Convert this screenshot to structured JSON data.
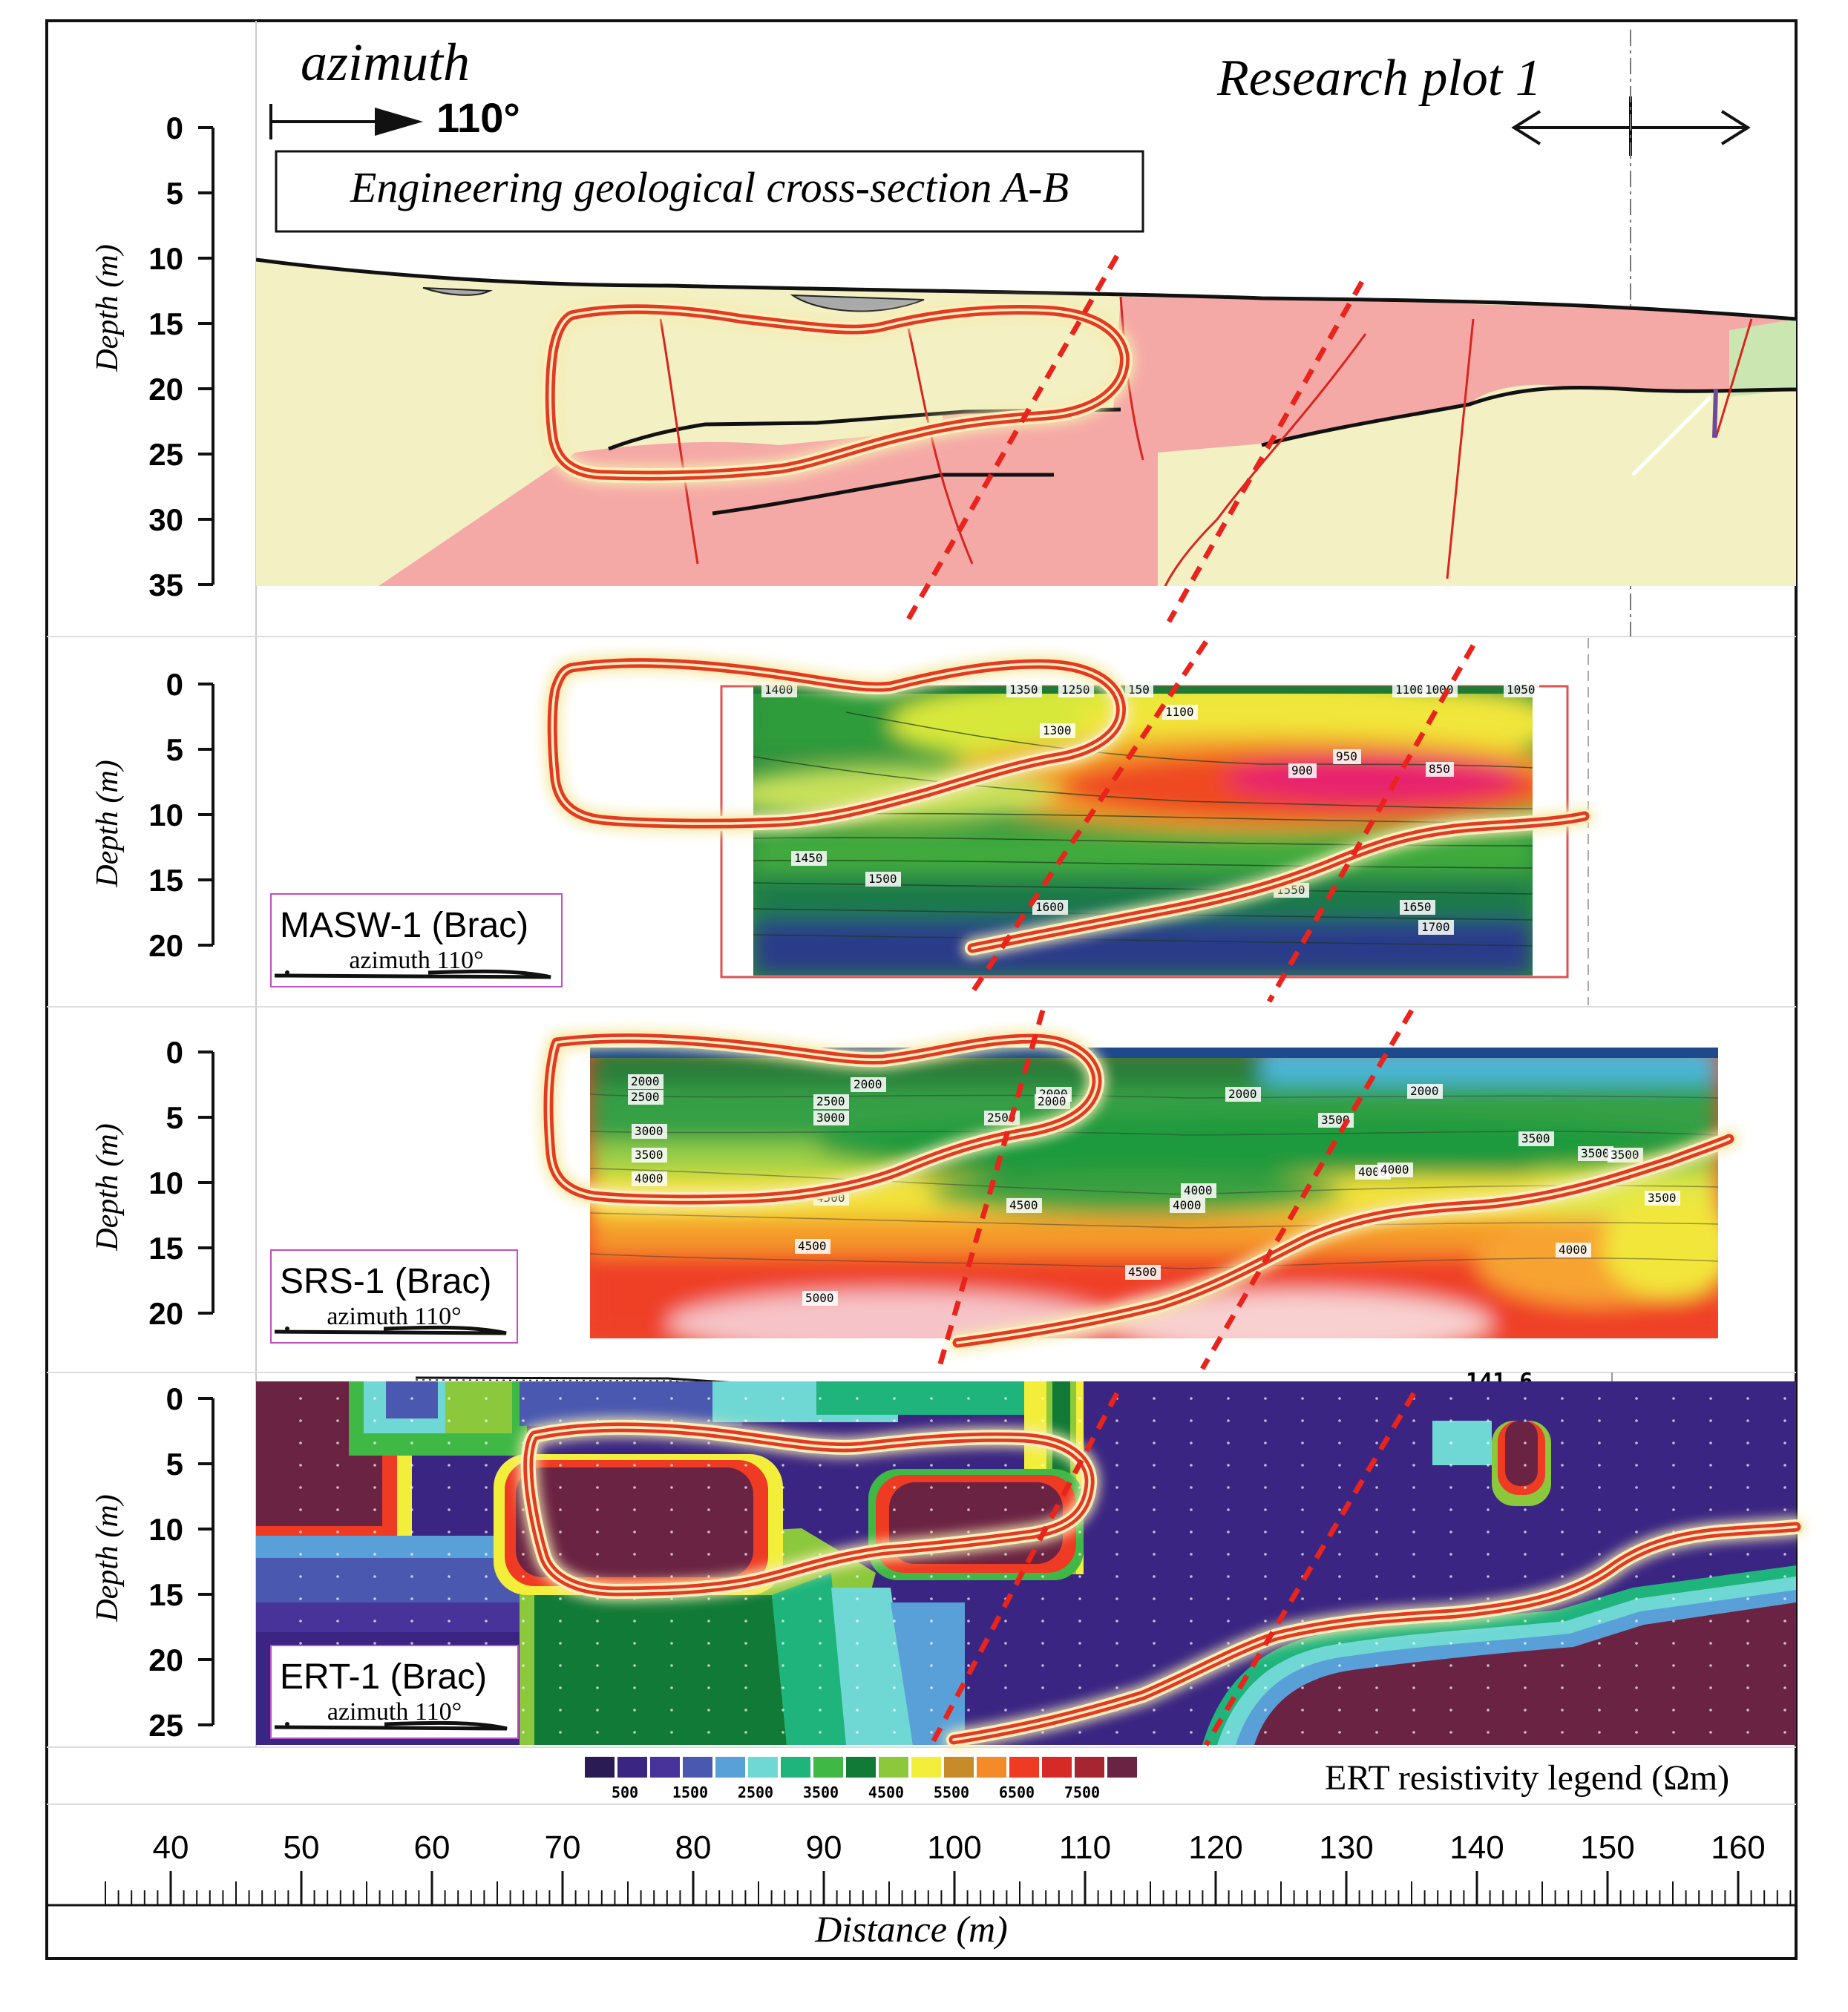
{
  "header": {
    "azimuth_word": "azimuth",
    "azimuth_value": "110°",
    "research_plot": "Research plot 1"
  },
  "panels": [
    {
      "id": "geology",
      "title": "Engineering geological cross-section A-B",
      "depth_label": "Depth (m)",
      "depth_ticks": [
        "0",
        "5",
        "10",
        "15",
        "20",
        "25",
        "30",
        "35"
      ]
    },
    {
      "id": "masw",
      "badge": "MASW-1 (Brac)",
      "badge_sub": "azimuth 110°",
      "depth_label": "Depth (m)",
      "depth_ticks": [
        "0",
        "5",
        "10",
        "15",
        "20"
      ],
      "contours": [
        "1400",
        "1350",
        "1250",
        "150",
        "1100",
        "1000",
        "1050",
        "1300",
        "1100",
        "900",
        "950",
        "850",
        "1450",
        "1500",
        "1550",
        "1650",
        "1600",
        "1700"
      ]
    },
    {
      "id": "srs",
      "badge": "SRS-1 (Brac)",
      "badge_sub": "azimuth 110°",
      "depth_label": "Depth (m)",
      "depth_ticks": [
        "0",
        "5",
        "10",
        "15",
        "20"
      ],
      "contours": [
        "2000",
        "2500",
        "2000",
        "2000",
        "3000",
        "3500",
        "4000",
        "2000",
        "2500",
        "2500",
        "2000",
        "2000",
        "3000",
        "3500",
        "3500",
        "3500",
        "3500",
        "4000",
        "4000",
        "4000",
        "4500",
        "4500",
        "4000",
        "3500",
        "4500",
        "5000",
        "4500",
        "4000"
      ]
    },
    {
      "id": "ert",
      "badge": "ERT-1 (Brac)",
      "badge_sub": "azimuth 110°",
      "depth_label": "Depth (m)",
      "depth_ticks": [
        "0",
        "5",
        "10",
        "15",
        "20",
        "25"
      ],
      "elevation_label": "141.6"
    }
  ],
  "legend": {
    "title": "ERT resistivity legend (Ωm)",
    "labels": [
      "500",
      "1500",
      "2500",
      "3500",
      "4500",
      "5500",
      "6500",
      "7500"
    ],
    "colors": [
      "#2b1b54",
      "#3a2582",
      "#47339a",
      "#4a58b0",
      "#5aa0d8",
      "#70d8d4",
      "#1fb47c",
      "#3fb845",
      "#117a37",
      "#8cc83c",
      "#f2ee3a",
      "#c88b2a",
      "#f58a28",
      "#ef3b24",
      "#d52a26",
      "#a52631",
      "#6b2343"
    ]
  },
  "x_axis": {
    "label": "Distance (m)",
    "ticks": [
      "40",
      "50",
      "60",
      "70",
      "80",
      "90",
      "100",
      "110",
      "120",
      "130",
      "140",
      "150",
      "160"
    ]
  }
}
